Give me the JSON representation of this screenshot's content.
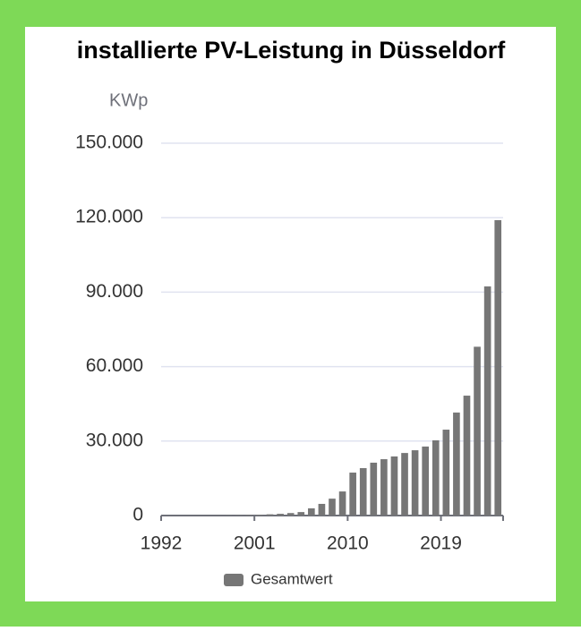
{
  "chart_data": {
    "type": "bar",
    "title": "installierte PV-Leistung in Düsseldorf",
    "y_label": "KWp",
    "categories": [
      "1992",
      null,
      null,
      null,
      null,
      null,
      null,
      null,
      null,
      "2001",
      null,
      null,
      null,
      null,
      null,
      null,
      null,
      null,
      "2010",
      null,
      null,
      null,
      null,
      null,
      null,
      null,
      null,
      "2019",
      null,
      null,
      null,
      null,
      null
    ],
    "series": [
      {
        "name": "Gesamtwert",
        "color": "#767676",
        "values": [
          2,
          5,
          10,
          20,
          40,
          60,
          100,
          150,
          250,
          350,
          500,
          700,
          1000,
          1400,
          2900,
          4700,
          6800,
          9700,
          17300,
          19100,
          21300,
          22700,
          23800,
          25200,
          26300,
          27800,
          30300,
          34600,
          41500,
          48300,
          68000,
          92300,
          119000
        ]
      }
    ],
    "ylim": [
      0,
      150000
    ],
    "yticks": [
      0,
      {
        "value": 30000,
        "label": "30.000"
      },
      {
        "value": 60000,
        "label": "60.000"
      },
      {
        "value": 90000,
        "label": "90.000"
      },
      {
        "value": 120000,
        "label": "120.000"
      },
      {
        "value": 150000,
        "label": "150.000"
      }
    ],
    "grid": true,
    "legend": "bottom"
  }
}
